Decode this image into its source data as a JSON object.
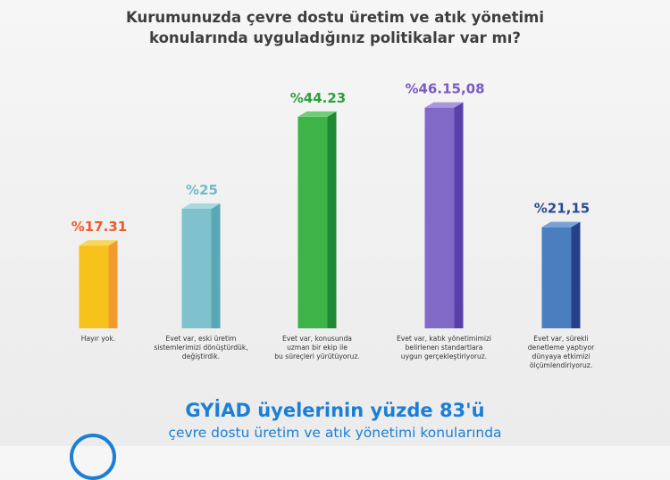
{
  "title_lines": [
    "Kurumunuzda çevre dostu üretim ve atık yönetimi",
    "konularında uyguladığınız politikalar var mı?"
  ],
  "chart_data": {
    "type": "bar",
    "categories": [
      [
        "Hayır yok."
      ],
      [
        "Evet var, eski üretim",
        "sistemlerimizi dönüştürdük,",
        "değiştirdik."
      ],
      [
        "Evet var, konusunda",
        "uzman bir ekip ile",
        "bu süreçleri yürütüyoruz."
      ],
      [
        "Evet var, katık yönetimimizi",
        "belirlenen standartlara",
        "uygun gerçekleştiriyoruz."
      ],
      [
        "Evet var, sürekli",
        "denetleme yaptıyor",
        "dünyaya etkimizi",
        "ölçümlendiriyoruz."
      ]
    ],
    "values": [
      17.31,
      25,
      44.23,
      46.15,
      21.15
    ],
    "value_labels": [
      "%17.31",
      "%25",
      "%44.23",
      "%46.15,08",
      "%21,15"
    ],
    "ylim": [
      0,
      50
    ],
    "grid": false,
    "colors": [
      {
        "front": "#f7c21b",
        "side": "#f29a2e",
        "top": "#fad65a",
        "label": "#ee5a29"
      },
      {
        "front": "#7fc2cd",
        "side": "#5aa8b5",
        "top": "#a8d9e1",
        "label": "#6dbcc7"
      },
      {
        "front": "#3db348",
        "side": "#1f8a36",
        "top": "#6fcd74",
        "label": "#2f9e3f"
      },
      {
        "front": "#8069c7",
        "side": "#5b3fa8",
        "top": "#a996dd",
        "label": "#7a5cc4"
      },
      {
        "front": "#4a7ebf",
        "side": "#27408a",
        "top": "#7aa2d6",
        "label": "#2a4a8f"
      }
    ]
  },
  "headline": "GYİAD üyelerinin yüzde 83'ü",
  "subline": "çevre dostu üretim ve atık yönetimi konularında"
}
